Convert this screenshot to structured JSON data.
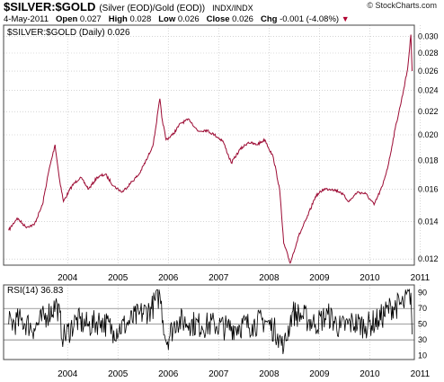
{
  "header": {
    "symbol": "$SILVER:$GOLD",
    "description": "(Silver (EOD)/Gold (EOD))",
    "exchange": "INDX/INDX",
    "credit": "© StockCharts.com",
    "date": "4-May-2011",
    "open_label": "Open",
    "open_value": "0.027",
    "high_label": "High",
    "high_value": "0.028",
    "low_label": "Low",
    "low_value": "0.026",
    "close_label": "Close",
    "close_value": "0.026",
    "chg_label": "Chg",
    "chg_value": "-0.001 (-4.08%)",
    "chg_arrow": "▼"
  },
  "colors": {
    "price_line": "#9c0a33",
    "rsi_line": "#000000",
    "grid": "#bbbbbb",
    "frame": "#444444",
    "down": "#b0002f"
  },
  "chart_data": [
    {
      "type": "line",
      "legend": "$SILVER:$GOLD (Daily) 0.026",
      "legend_placement": "top-left",
      "y_scale": "log",
      "y_axis_side": "right",
      "ylim": [
        0.0117,
        0.0314
      ],
      "y_ticks": [
        "0.012",
        "0.014",
        "0.016",
        "0.018",
        "0.020",
        "0.022",
        "0.024",
        "0.026",
        "0.028",
        "0.030"
      ],
      "x_ticks": [
        "2004",
        "2005",
        "2006",
        "2007",
        "2008",
        "2009",
        "2010",
        "2011"
      ],
      "grid": true,
      "series": [
        {
          "x": [
            "2003-05-01",
            "2003-07-01",
            "2003-09-01",
            "2003-11-01",
            "2004-01-01",
            "2004-02-15",
            "2004-04-01",
            "2004-05-01",
            "2004-06-01",
            "2004-08-01",
            "2004-10-01",
            "2004-12-01",
            "2005-02-01",
            "2005-04-01",
            "2005-06-01",
            "2005-08-01",
            "2005-10-01",
            "2005-12-01",
            "2006-02-01",
            "2006-03-15",
            "2006-05-01",
            "2006-05-15",
            "2006-06-15",
            "2006-08-01",
            "2006-10-01",
            "2006-12-01",
            "2007-02-01",
            "2007-04-01",
            "2007-06-01",
            "2007-08-01",
            "2007-10-01",
            "2007-12-01",
            "2008-02-01",
            "2008-04-01",
            "2008-06-01",
            "2008-08-01",
            "2008-09-15",
            "2008-10-15",
            "2008-12-01",
            "2009-02-01",
            "2009-04-01",
            "2009-06-01",
            "2009-08-01",
            "2009-10-01",
            "2009-12-01",
            "2010-02-01",
            "2010-04-01",
            "2010-06-01",
            "2010-08-01",
            "2010-10-01",
            "2010-11-15",
            "2011-01-01",
            "2011-02-15",
            "2011-04-01",
            "2011-04-25",
            "2011-05-04"
          ],
          "y": [
            0.0135,
            0.0142,
            0.0137,
            0.0138,
            0.015,
            0.0172,
            0.0192,
            0.0168,
            0.0152,
            0.0162,
            0.0168,
            0.016,
            0.0168,
            0.017,
            0.0162,
            0.0158,
            0.0164,
            0.017,
            0.0182,
            0.0193,
            0.0232,
            0.0215,
            0.0196,
            0.02,
            0.021,
            0.0213,
            0.0203,
            0.0204,
            0.02,
            0.0195,
            0.0178,
            0.0188,
            0.0194,
            0.0192,
            0.0196,
            0.0182,
            0.016,
            0.0128,
            0.0118,
            0.0132,
            0.0142,
            0.0155,
            0.016,
            0.016,
            0.0158,
            0.0152,
            0.0158,
            0.0157,
            0.015,
            0.0162,
            0.0178,
            0.0205,
            0.023,
            0.0262,
            0.0302,
            0.026
          ]
        }
      ]
    },
    {
      "type": "line",
      "legend": "RSI(14) 36.83",
      "legend_placement": "top-left",
      "y_axis_side": "right",
      "ylim": [
        5,
        100
      ],
      "y_ticks": [
        "10",
        "30",
        "50",
        "70",
        "90"
      ],
      "reference_lines": [
        30,
        50,
        70
      ],
      "x_ticks": [
        "2004",
        "2005",
        "2006",
        "2007",
        "2008",
        "2009",
        "2010",
        "2011"
      ],
      "grid": true,
      "series": [
        {
          "x": [
            "2003-05-01",
            "2003-08-01",
            "2003-11-01",
            "2004-02-01",
            "2004-04-15",
            "2004-06-01",
            "2004-09-01",
            "2004-12-01",
            "2005-03-01",
            "2005-06-01",
            "2005-09-01",
            "2005-12-01",
            "2006-03-01",
            "2006-05-01",
            "2006-06-15",
            "2006-09-01",
            "2006-12-01",
            "2007-03-01",
            "2007-06-01",
            "2007-09-01",
            "2007-12-01",
            "2008-03-01",
            "2008-06-01",
            "2008-09-01",
            "2008-10-15",
            "2008-12-15",
            "2009-03-01",
            "2009-06-01",
            "2009-09-01",
            "2009-12-01",
            "2010-03-01",
            "2010-06-01",
            "2010-09-01",
            "2010-12-01",
            "2011-03-01",
            "2011-04-25",
            "2011-05-04"
          ],
          "y": [
            50,
            55,
            45,
            62,
            75,
            32,
            55,
            48,
            55,
            42,
            50,
            62,
            70,
            88,
            28,
            55,
            52,
            48,
            50,
            45,
            48,
            50,
            55,
            38,
            18,
            65,
            60,
            50,
            62,
            45,
            52,
            48,
            55,
            72,
            75,
            90,
            37
          ]
        }
      ]
    }
  ]
}
